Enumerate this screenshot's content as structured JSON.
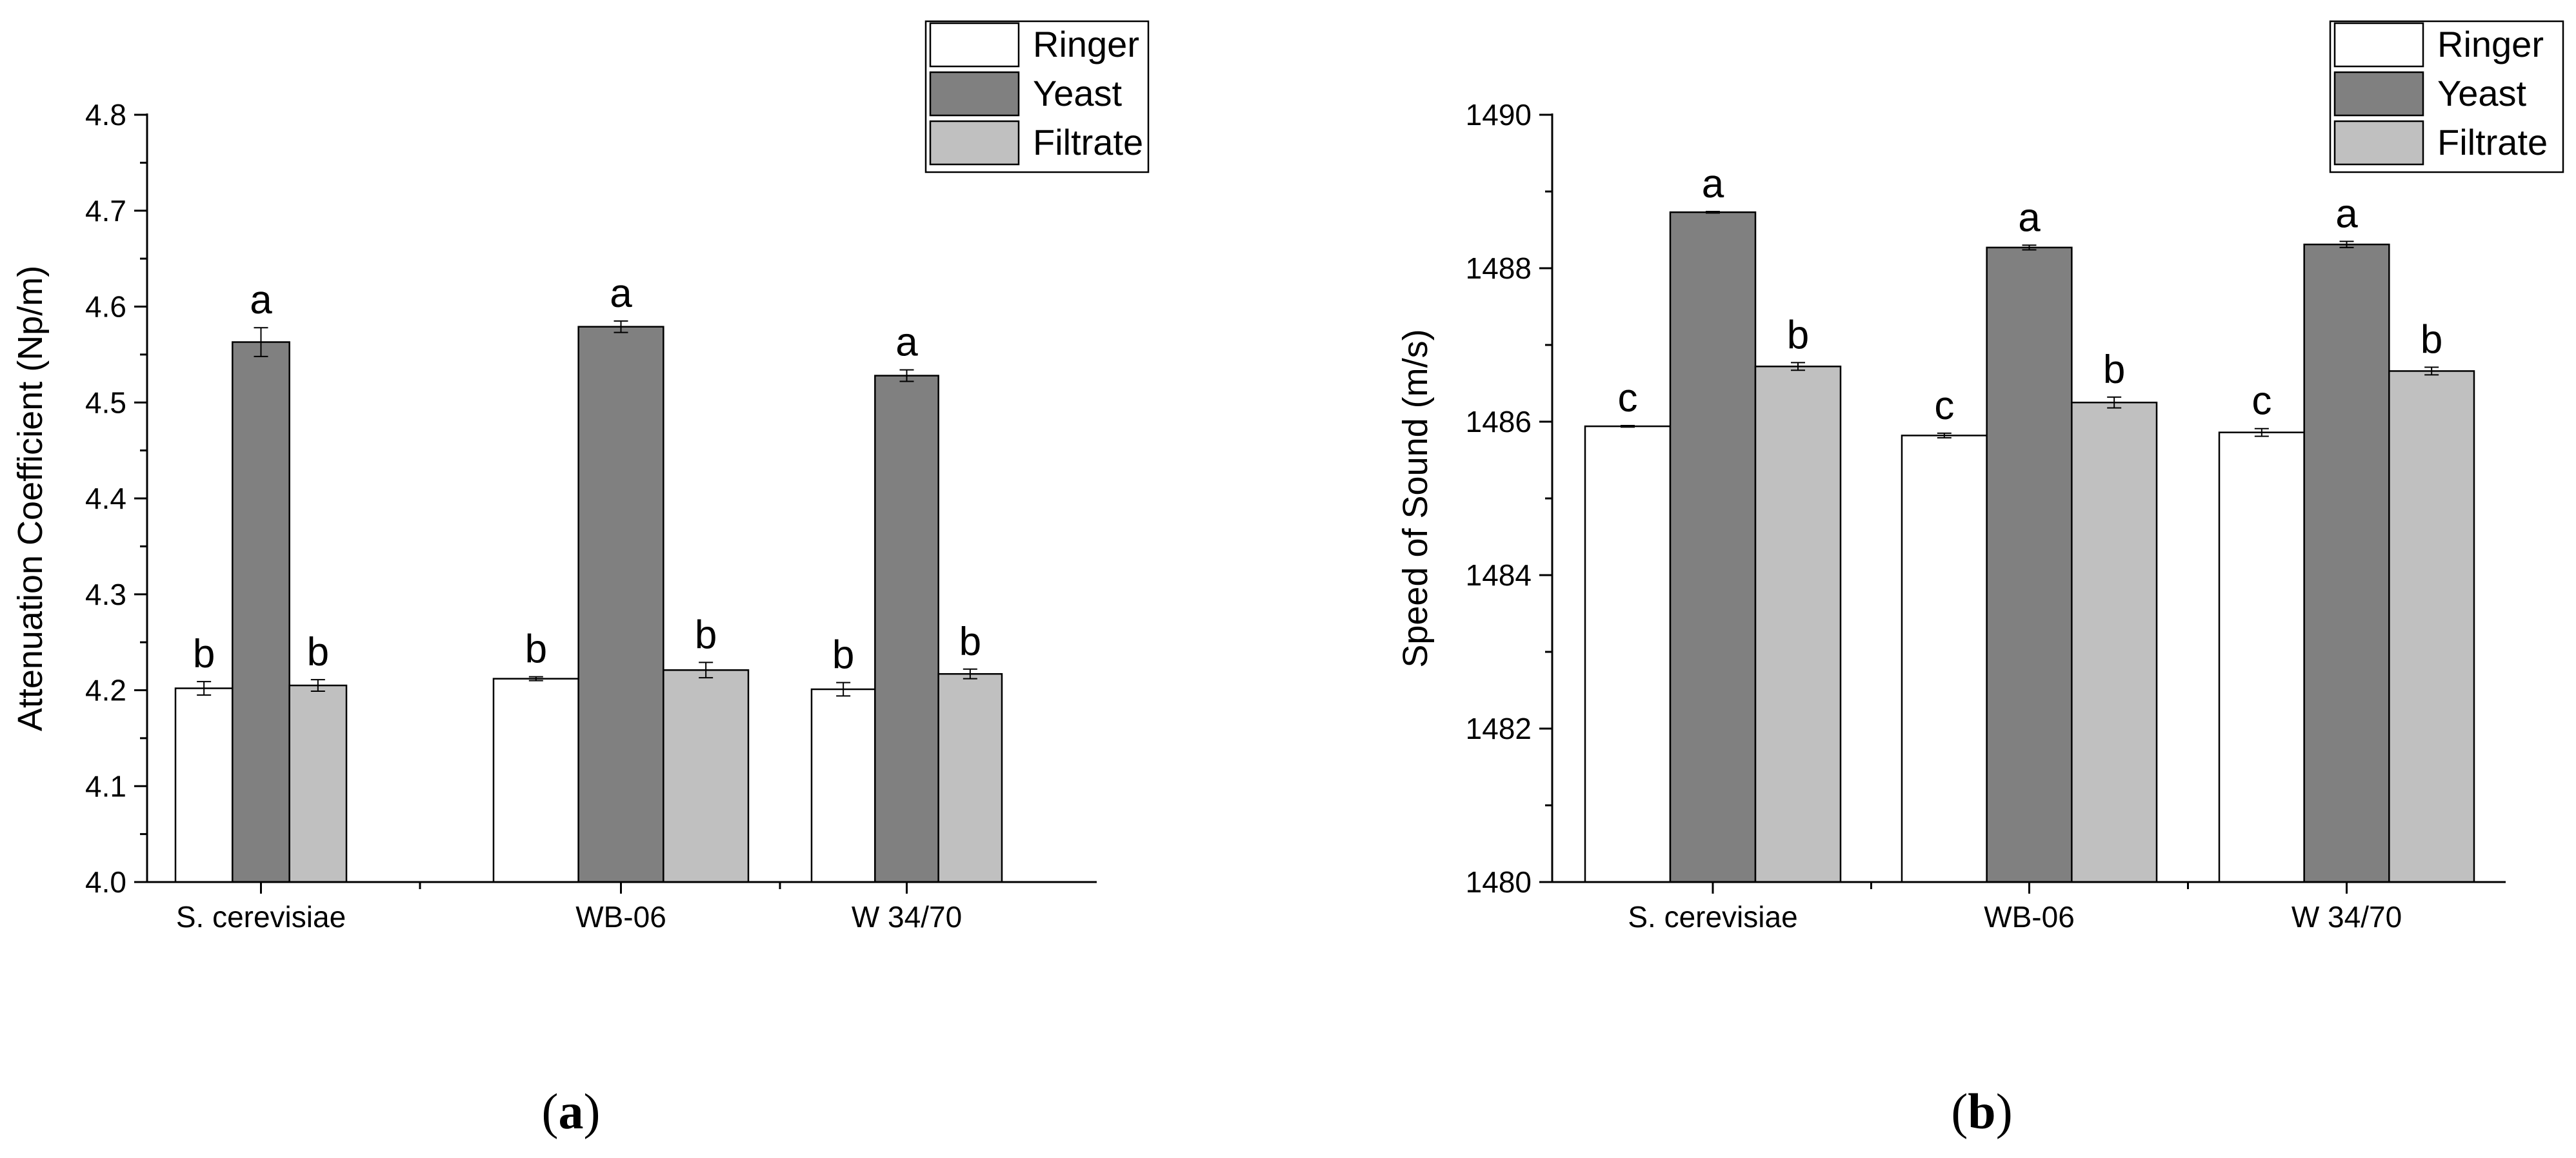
{
  "panel_labels": [
    {
      "open": "(",
      "letter": "a",
      "close": ")"
    },
    {
      "open": "(",
      "letter": "b",
      "close": ")"
    }
  ],
  "chart_data": [
    {
      "type": "bar",
      "ylabel": "Attenuation Coefficient (Np/m)",
      "xlabel": "",
      "ylim": [
        4.0,
        4.8
      ],
      "yticks": [
        4.0,
        4.1,
        4.2,
        4.3,
        4.4,
        4.5,
        4.6,
        4.7,
        4.8
      ],
      "ytick_decimals": 1,
      "minor_ticks": true,
      "grid": false,
      "legend_position": "top-right",
      "categories": [
        "S. cerevisiae",
        "WB-06",
        "W 34/70"
      ],
      "series": [
        {
          "name": "Ringer",
          "color": "#ffffff",
          "values": [
            4.202,
            4.212,
            4.201
          ],
          "errors": [
            0.007,
            0.002,
            0.007
          ],
          "letters": [
            "b",
            "b",
            "b"
          ]
        },
        {
          "name": "Yeast",
          "color": "#808080",
          "values": [
            4.563,
            4.579,
            4.528
          ],
          "errors": [
            0.015,
            0.006,
            0.006
          ],
          "letters": [
            "a",
            "a",
            "a"
          ]
        },
        {
          "name": "Filtrate",
          "color": "#c0c0c0",
          "values": [
            4.205,
            4.221,
            4.217
          ],
          "errors": [
            0.006,
            0.008,
            0.005
          ],
          "letters": [
            "b",
            "b",
            "b"
          ]
        }
      ]
    },
    {
      "type": "bar",
      "ylabel": "Speed of Sound (m/s)",
      "xlabel": "",
      "ylim": [
        1480,
        1490
      ],
      "yticks": [
        1480,
        1482,
        1484,
        1486,
        1488,
        1490
      ],
      "ytick_decimals": 0,
      "minor_ticks": true,
      "grid": false,
      "legend_position": "top-right",
      "categories": [
        "S. cerevisiae",
        "WB-06",
        "W 34/70"
      ],
      "series": [
        {
          "name": "Ringer",
          "color": "#ffffff",
          "values": [
            1485.94,
            1485.82,
            1485.86
          ],
          "errors": [
            0.01,
            0.03,
            0.05
          ],
          "letters": [
            "c",
            "c",
            "c"
          ]
        },
        {
          "name": "Yeast",
          "color": "#808080",
          "values": [
            1488.73,
            1488.27,
            1488.31
          ],
          "errors": [
            0.01,
            0.03,
            0.04
          ],
          "letters": [
            "a",
            "a",
            "a"
          ]
        },
        {
          "name": "Filtrate",
          "color": "#c0c0c0",
          "values": [
            1486.72,
            1486.25,
            1486.66
          ],
          "errors": [
            0.05,
            0.07,
            0.05
          ],
          "letters": [
            "b",
            "b",
            "b"
          ]
        }
      ]
    }
  ]
}
